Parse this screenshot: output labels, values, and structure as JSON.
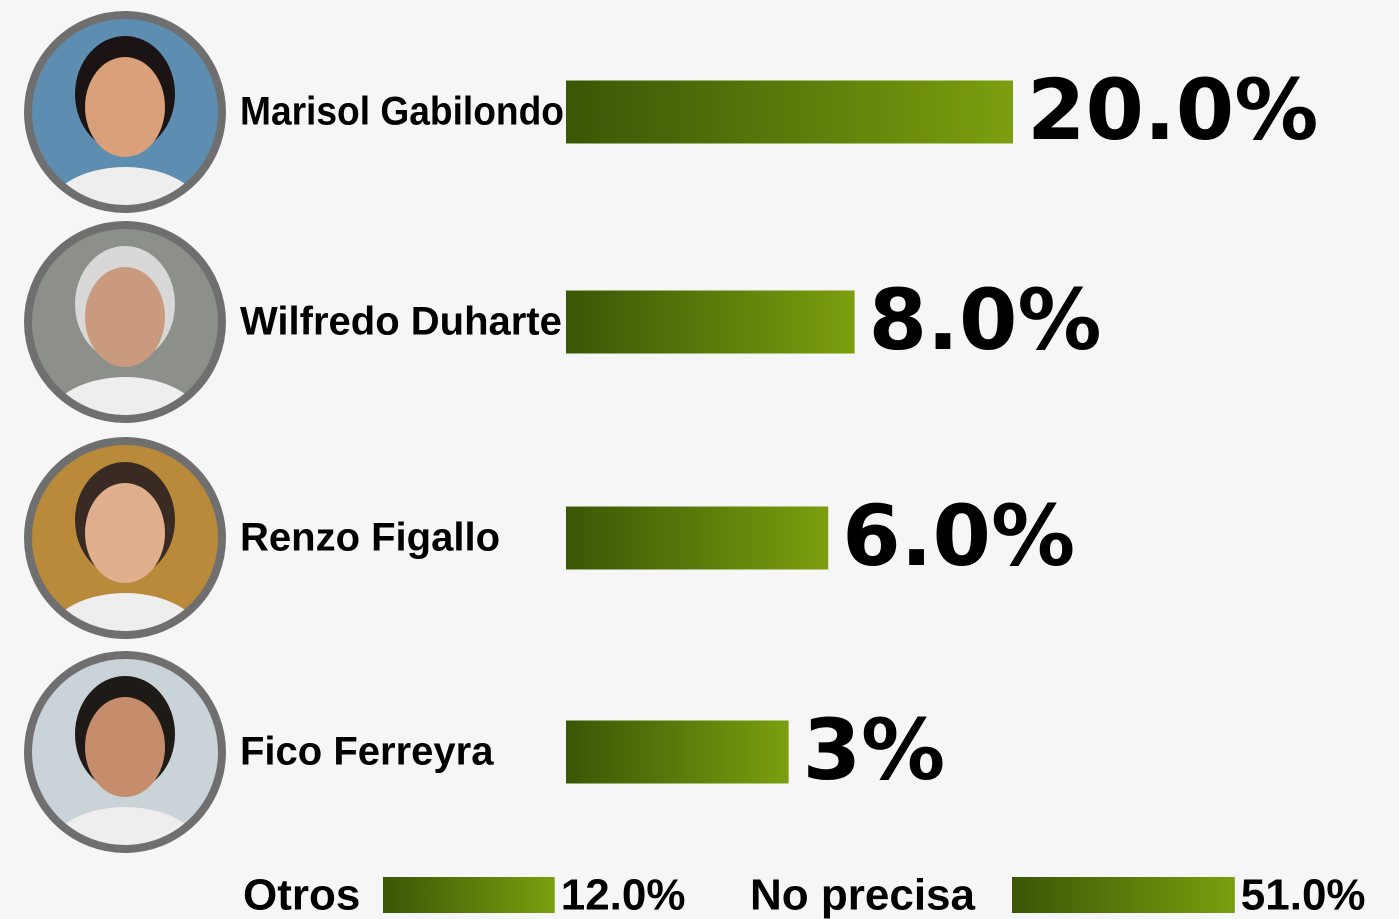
{
  "chart_data": {
    "type": "bar",
    "categories": [
      "Marisol Gabilondo",
      "Wilfredo Duharte",
      "Renzo Figallo",
      "Fico Ferreyra",
      "Otros",
      "No precisa"
    ],
    "values": [
      20,
      8,
      6,
      3,
      12,
      51
    ],
    "value_labels": [
      "20.0%",
      "8.0%",
      "6.0%",
      "3%",
      "12.0%",
      "51.0%"
    ],
    "colors": [
      "#3b5606",
      "#7c9e0e"
    ]
  }
}
